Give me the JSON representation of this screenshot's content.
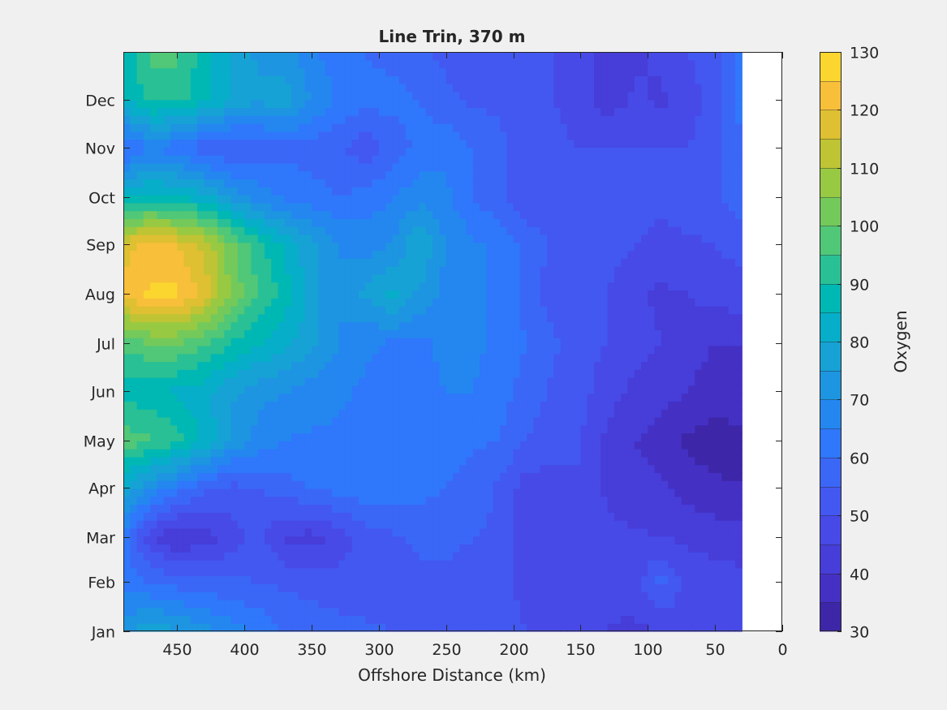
{
  "chart_data": {
    "type": "heatmap",
    "title": "Line Trin, 370 m",
    "xlabel": "Offshore Distance (km)",
    "ylabel": "",
    "xlim": [
      0,
      490
    ],
    "x_reversed": true,
    "x_ticks": [
      450,
      400,
      350,
      300,
      250,
      200,
      150,
      100,
      50,
      0
    ],
    "y_ticks": [
      "Jan",
      "Feb",
      "Mar",
      "Apr",
      "May",
      "Jun",
      "Jul",
      "Aug",
      "Sep",
      "Oct",
      "Nov",
      "Dec"
    ],
    "y_day_of_year": [
      1,
      32,
      60,
      91,
      121,
      152,
      182,
      213,
      244,
      274,
      305,
      335
    ],
    "ylim_day_of_year": [
      1,
      365
    ],
    "data_x_range": [
      30,
      490
    ],
    "colorbar": {
      "label": "Oxygen",
      "min": 30,
      "max": 130,
      "ticks": [
        30,
        40,
        50,
        60,
        70,
        80,
        90,
        100,
        110,
        120,
        130
      ],
      "levels": [
        30,
        35,
        40,
        45,
        50,
        55,
        60,
        65,
        70,
        75,
        80,
        85,
        90,
        95,
        100,
        105,
        110,
        115,
        120,
        125,
        130
      ],
      "colors": [
        "#3e26a8",
        "#4431c4",
        "#473dd8",
        "#474ae7",
        "#4358f0",
        "#3b67f7",
        "#2f77fb",
        "#2487f0",
        "#1d95e1",
        "#17a2d5",
        "#06aec9",
        "#00b8b3",
        "#29c095",
        "#51c778",
        "#74c95b",
        "#98c942",
        "#bec434",
        "#dec032",
        "#f8bf3a",
        "#fbd62f",
        "#f5e61d"
      ]
    },
    "field_samples": {
      "columns_km": [
        490,
        470,
        450,
        430,
        410,
        390,
        370,
        350,
        330,
        310,
        290,
        270,
        250,
        230,
        210,
        190,
        170,
        150,
        130,
        110,
        90,
        70,
        50,
        30
      ],
      "rows": [
        {
          "month": "Jan",
          "oxygen": [
            74,
            78,
            76,
            72,
            68,
            64,
            60,
            58,
            57,
            56,
            55,
            54,
            53,
            53,
            52,
            50,
            48,
            46,
            45,
            44,
            45,
            47,
            48,
            50
          ]
        },
        {
          "month": "Feb",
          "oxygen": [
            62,
            60,
            58,
            57,
            56,
            55,
            54,
            53,
            52,
            52,
            53,
            54,
            54,
            53,
            52,
            48,
            47,
            46,
            46,
            47,
            57,
            48,
            47,
            46
          ]
        },
        {
          "month": "Mar",
          "oxygen": [
            62,
            46,
            40,
            42,
            47,
            52,
            44,
            43,
            47,
            52,
            54,
            56,
            56,
            55,
            54,
            47,
            46,
            46,
            46,
            46,
            45,
            44,
            43,
            43
          ]
        },
        {
          "month": "Apr",
          "oxygen": [
            80,
            70,
            62,
            56,
            53,
            55,
            58,
            60,
            62,
            63,
            63,
            62,
            60,
            58,
            54,
            47,
            48,
            50,
            44,
            42,
            41,
            38,
            36,
            35
          ]
        },
        {
          "month": "May",
          "oxygen": [
            98,
            96,
            92,
            84,
            74,
            68,
            65,
            64,
            64,
            64,
            63,
            62,
            62,
            61,
            60,
            55,
            52,
            50,
            44,
            40,
            38,
            34,
            32,
            34
          ]
        },
        {
          "month": "Jun",
          "oxygen": [
            88,
            86,
            84,
            82,
            76,
            72,
            70,
            68,
            66,
            64,
            63,
            64,
            65,
            65,
            62,
            58,
            54,
            52,
            47,
            44,
            42,
            40,
            38,
            38
          ]
        },
        {
          "month": "Jul",
          "oxygen": [
            96,
            100,
            100,
            96,
            90,
            86,
            82,
            76,
            70,
            66,
            64,
            64,
            66,
            66,
            64,
            60,
            56,
            52,
            50,
            47,
            45,
            42,
            40,
            40
          ]
        },
        {
          "month": "Aug",
          "oxygen": [
            122,
            126,
            126,
            118,
            104,
            95,
            88,
            78,
            70,
            76,
            82,
            74,
            68,
            66,
            64,
            58,
            52,
            50,
            50,
            46,
            44,
            45,
            47,
            48
          ]
        },
        {
          "month": "Sep",
          "oxygen": [
            118,
            122,
            120,
            114,
            102,
            92,
            84,
            76,
            70,
            68,
            70,
            80,
            70,
            66,
            64,
            58,
            54,
            52,
            52,
            50,
            48,
            49,
            50,
            52
          ]
        },
        {
          "month": "Oct",
          "oxygen": [
            84,
            88,
            86,
            82,
            74,
            68,
            64,
            62,
            60,
            62,
            65,
            68,
            66,
            60,
            56,
            52,
            52,
            52,
            52,
            52,
            52,
            53,
            54,
            58
          ]
        },
        {
          "month": "Nov",
          "oxygen": [
            58,
            64,
            62,
            56,
            54,
            56,
            58,
            58,
            56,
            52,
            56,
            62,
            64,
            60,
            56,
            52,
            51,
            50,
            50,
            50,
            50,
            50,
            52,
            60
          ]
        },
        {
          "month": "Dec",
          "oxygen": [
            84,
            92,
            92,
            86,
            80,
            76,
            78,
            70,
            64,
            62,
            62,
            60,
            56,
            54,
            54,
            52,
            50,
            48,
            42,
            46,
            44,
            48,
            52,
            62
          ]
        },
        {
          "month": "Jan",
          "oxygen": [
            86,
            96,
            96,
            88,
            80,
            74,
            72,
            66,
            62,
            60,
            58,
            56,
            54,
            53,
            52,
            52,
            50,
            48,
            40,
            44,
            46,
            50,
            52,
            64
          ]
        }
      ]
    }
  }
}
